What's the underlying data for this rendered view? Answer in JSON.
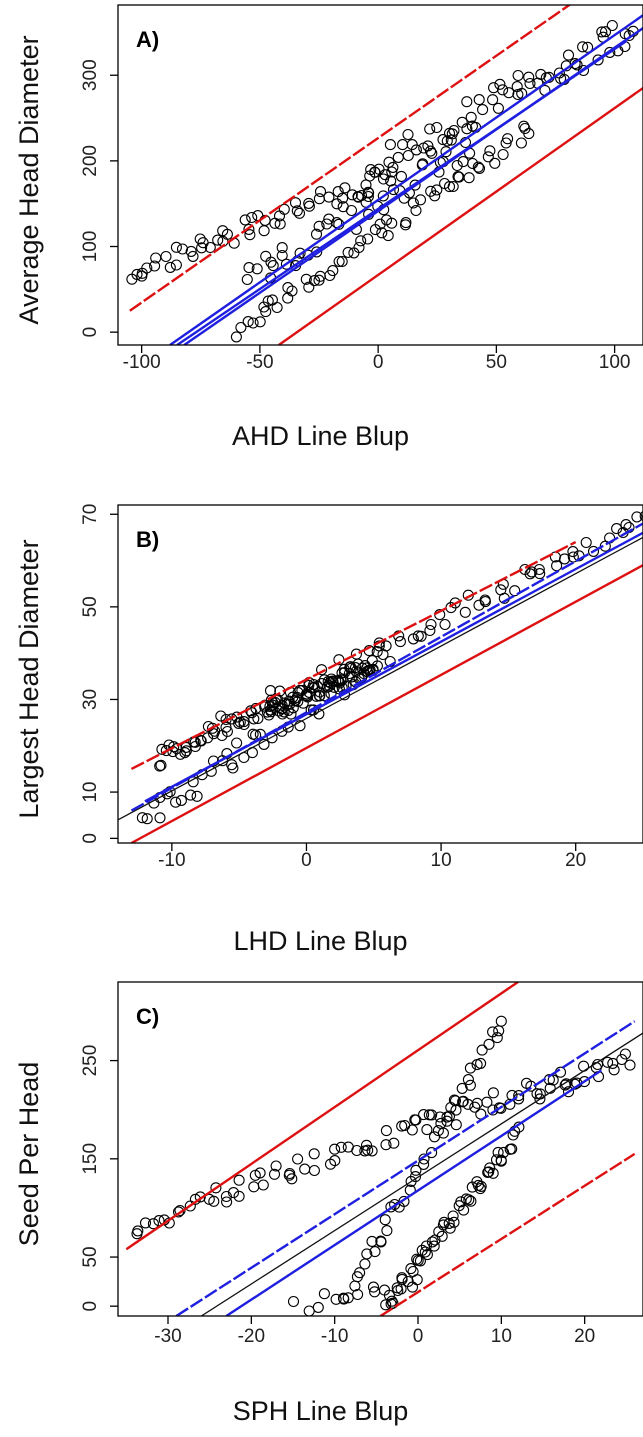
{
  "chart_data": [
    {
      "type": "scatter",
      "panel_label": "A)",
      "xlabel": "AHD Line Blup",
      "ylabel": "Average Head Diameter",
      "xlim": [
        -110,
        112
      ],
      "ylim": [
        -15,
        382
      ],
      "xticks": [
        -100,
        -50,
        0,
        50,
        100
      ],
      "yticks": [
        0,
        100,
        200,
        300
      ],
      "clusters": [
        {
          "x0": -105,
          "x1": 5,
          "y_start": 68,
          "slope": 1.05,
          "n": 55,
          "noise": 12
        },
        {
          "x0": -60,
          "x1": 65,
          "y_start": 0,
          "slope": 1.9,
          "n": 60,
          "noise": 12
        },
        {
          "x0": -5,
          "x1": 108,
          "y_start": 190,
          "slope": 1.45,
          "n": 70,
          "noise": 18
        },
        {
          "x0": -55,
          "x1": 40,
          "y_start": 55,
          "slope": 1.75,
          "n": 50,
          "noise": 22
        }
      ],
      "lines": [
        {
          "color": "#dd1111",
          "x": [
            -105,
            85
          ],
          "y": [
            25,
            390
          ],
          "dash": true
        },
        {
          "color": "#dd1111",
          "x": [
            -42,
            112
          ],
          "y": [
            -15,
            285
          ]
        },
        {
          "color": "#1f1fe0",
          "x": [
            -88,
            112
          ],
          "y": [
            -15,
            370
          ]
        },
        {
          "color": "#1f1fe0",
          "x": [
            -82,
            112
          ],
          "y": [
            -15,
            355
          ]
        },
        {
          "color": "#1f1fe0",
          "x": [
            -85,
            105
          ],
          "y": [
            -15,
            340
          ]
        }
      ]
    },
    {
      "type": "scatter",
      "panel_label": "B)",
      "xlabel": "LHD Line Blup",
      "ylabel": "Largest Head Diameter",
      "xlim": [
        -14,
        25
      ],
      "ylim": [
        -1,
        72
      ],
      "xticks": [
        -10,
        0,
        10,
        20
      ],
      "yticks": [
        0,
        10,
        30,
        50,
        70
      ],
      "clusters": [
        {
          "x0": -11,
          "x1": -2,
          "y_start": 17,
          "slope": 1.5,
          "n": 45,
          "noise": 2.5
        },
        {
          "x0": -12,
          "x1": 6,
          "y_start": 4,
          "slope": 2.0,
          "n": 50,
          "noise": 3
        },
        {
          "x0": -2,
          "x1": 25,
          "y_start": 30,
          "slope": 1.45,
          "n": 60,
          "noise": 2.5
        },
        {
          "x0": -3,
          "x1": 5,
          "y_start": 27,
          "slope": 1.3,
          "n": 70,
          "noise": 2
        }
      ],
      "lines": [
        {
          "color": "#dd1111",
          "x": [
            -13,
            20
          ],
          "y": [
            15,
            64
          ],
          "dash": true
        },
        {
          "color": "#dd1111",
          "x": [
            -13,
            25
          ],
          "y": [
            -1,
            59
          ]
        },
        {
          "color": "#111111",
          "x": [
            -14,
            25
          ],
          "y": [
            4,
            65
          ]
        },
        {
          "color": "#1f1fe0",
          "x": [
            -13,
            25
          ],
          "y": [
            6,
            68
          ],
          "dash": true
        },
        {
          "color": "#1f1fe0",
          "x": [
            -12,
            25
          ],
          "y": [
            8,
            66
          ]
        }
      ]
    },
    {
      "type": "scatter",
      "panel_label": "C)",
      "xlabel": "SPH Line Blup",
      "ylabel": "Seed Per Head",
      "xlim": [
        -36,
        27
      ],
      "ylim": [
        -10,
        330
      ],
      "xticks": [
        -30,
        -20,
        -10,
        0,
        10,
        20
      ],
      "yticks": [
        0,
        50,
        150,
        250
      ],
      "clusters": [
        {
          "x0": -34,
          "x1": 0,
          "y_start": 82,
          "slope": 3.0,
          "n": 50,
          "noise": 10
        },
        {
          "x0": 0,
          "x1": 25,
          "y_start": 185,
          "slope": 2.5,
          "n": 50,
          "noise": 12
        },
        {
          "x0": -9,
          "x1": 10,
          "y_start": 5,
          "slope": 15,
          "n": 45,
          "noise": 10
        },
        {
          "x0": -4,
          "x1": 12,
          "y_start": 0,
          "slope": 11,
          "n": 55,
          "noise": 8
        },
        {
          "x0": -14,
          "x1": 0,
          "y_start": 0,
          "slope": 2,
          "n": 12,
          "noise": 8
        }
      ],
      "lines": [
        {
          "color": "#dd1111",
          "x": [
            -35,
            12
          ],
          "y": [
            58,
            330
          ]
        },
        {
          "color": "#dd1111",
          "x": [
            -4.5,
            26
          ],
          "y": [
            -10,
            155
          ],
          "dash": true
        },
        {
          "color": "#111111",
          "x": [
            -26,
            27
          ],
          "y": [
            -10,
            278
          ]
        },
        {
          "color": "#1f1fe0",
          "x": [
            -29,
            26
          ],
          "y": [
            -10,
            290
          ],
          "dash": true
        },
        {
          "color": "#1f1fe0",
          "x": [
            -23,
            22
          ],
          "y": [
            -10,
            240
          ]
        }
      ]
    }
  ]
}
